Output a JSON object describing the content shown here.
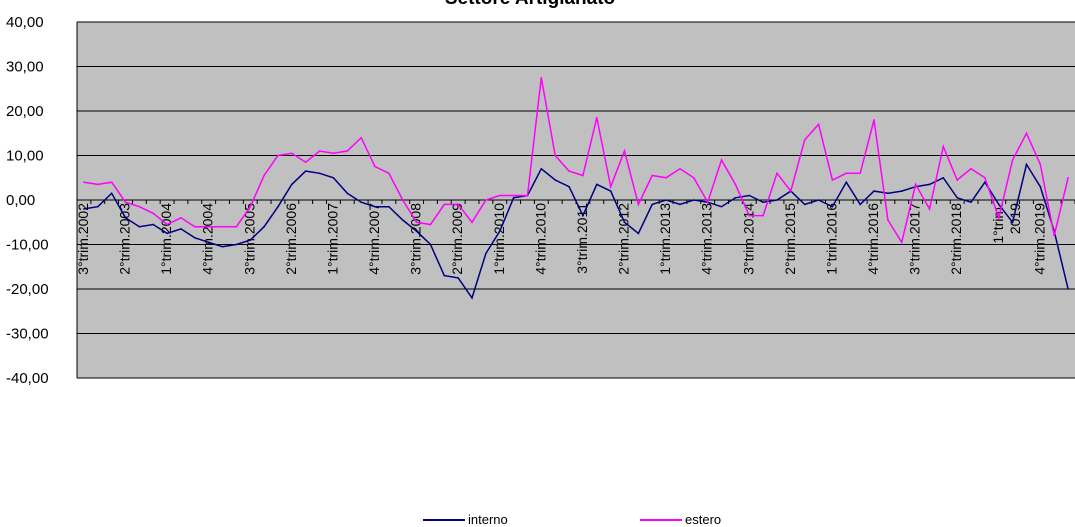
{
  "chart_data": {
    "type": "line",
    "title": "Settore Artigianato",
    "xlabel": "",
    "ylabel": "",
    "ylim": [
      -40,
      40
    ],
    "ytick_labels": [
      "40,00",
      "30,00",
      "20,00",
      "10,00",
      "0,00",
      "-10,00",
      "-20,00",
      "-30,00",
      "-40,00"
    ],
    "ytick_values": [
      40,
      30,
      20,
      10,
      0,
      -10,
      -20,
      -30,
      -40
    ],
    "xtick_labels": [
      "3°trim.2002",
      "2°trim.2003",
      "1°trim.2004",
      "4°trim.2004",
      "3°trim.2005",
      "2°trim.2006",
      "1°trim.2007",
      "4°trim.2007",
      "3°trim.2008",
      "2°trim.2009",
      "1°trim.2010",
      "4°trim.2010",
      "3°trim.2011",
      "2°trim.2012",
      "1°trim.2013",
      "4°trim.2013",
      "3°trim.2014",
      "2°trim.2015",
      "1°trim.2016",
      "4°trim.2016",
      "3°trim.2017",
      "2°trim.2018",
      "1°trim. 2019",
      "4°trim.2019"
    ],
    "xtick_every": 3,
    "grid": "horizontal",
    "background": "#c0c0c0",
    "legend_position": "bottom",
    "series": [
      {
        "name": "interno",
        "color": "#000080",
        "values": [
          -2,
          -1.5,
          1.5,
          -4,
          -6,
          -5.5,
          -7.5,
          -6.5,
          -8.5,
          -9.5,
          -10.5,
          -10,
          -9,
          -6,
          -1.5,
          3.5,
          6.5,
          6,
          5,
          1.5,
          -0.5,
          -1.5,
          -1.5,
          -4.5,
          -7,
          -10,
          -17,
          -17.5,
          -22,
          -12,
          -7,
          0.5,
          1,
          7,
          4.5,
          3,
          -3.5,
          3.5,
          2,
          -5,
          -7.5,
          -1,
          0,
          -1,
          0,
          -0.5,
          -1.5,
          0.5,
          1,
          -0.5,
          0,
          2,
          -1,
          0,
          -1.5,
          4,
          -1,
          2,
          1.5,
          2,
          3,
          3.5,
          5,
          0.5,
          -0.5,
          4,
          -1,
          -5,
          8,
          3,
          -7,
          -20
        ]
      },
      {
        "name": "estero",
        "color": "#ff00ff",
        "values": [
          4,
          3.5,
          4,
          -0.5,
          -1.5,
          -3,
          -5.5,
          -4,
          -6,
          -6,
          -6,
          -6,
          -1.5,
          5.5,
          10,
          10.5,
          8.5,
          11,
          10.5,
          11,
          14,
          7.5,
          6,
          0,
          -5,
          -5.5,
          -1,
          -1,
          -5,
          0,
          1,
          1,
          1,
          27.5,
          10,
          6.5,
          5.5,
          18.5,
          3,
          11,
          -1,
          5.5,
          5,
          7,
          5,
          -0.5,
          9,
          3.5,
          -3.5,
          -3.5,
          6,
          2,
          13.5,
          17,
          4.5,
          6,
          6,
          18,
          -4.5,
          -9.5,
          3.5,
          -2,
          12,
          4.5,
          7,
          5,
          -4,
          9,
          15,
          8,
          -8,
          5
        ]
      }
    ]
  }
}
